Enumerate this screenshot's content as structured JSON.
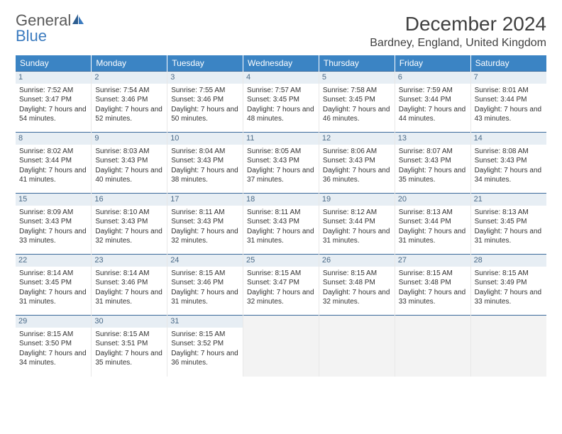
{
  "brand": {
    "word1": "General",
    "word2": "Blue"
  },
  "title": "December 2024",
  "location": "Bardney, England, United Kingdom",
  "colors": {
    "header_bg": "#3b84c4",
    "header_text": "#ffffff",
    "daynum_bg": "#e7eef4",
    "daynum_text": "#4a6a88",
    "row_border": "#3b6a9a",
    "empty_bg": "#f3f3f3",
    "logo_blue": "#3b7bbf",
    "logo_gray": "#5a5a5a"
  },
  "day_headers": [
    "Sunday",
    "Monday",
    "Tuesday",
    "Wednesday",
    "Thursday",
    "Friday",
    "Saturday"
  ],
  "weeks": [
    [
      {
        "n": "1",
        "sr": "Sunrise: 7:52 AM",
        "ss": "Sunset: 3:47 PM",
        "dl": "Daylight: 7 hours and 54 minutes."
      },
      {
        "n": "2",
        "sr": "Sunrise: 7:54 AM",
        "ss": "Sunset: 3:46 PM",
        "dl": "Daylight: 7 hours and 52 minutes."
      },
      {
        "n": "3",
        "sr": "Sunrise: 7:55 AM",
        "ss": "Sunset: 3:46 PM",
        "dl": "Daylight: 7 hours and 50 minutes."
      },
      {
        "n": "4",
        "sr": "Sunrise: 7:57 AM",
        "ss": "Sunset: 3:45 PM",
        "dl": "Daylight: 7 hours and 48 minutes."
      },
      {
        "n": "5",
        "sr": "Sunrise: 7:58 AM",
        "ss": "Sunset: 3:45 PM",
        "dl": "Daylight: 7 hours and 46 minutes."
      },
      {
        "n": "6",
        "sr": "Sunrise: 7:59 AM",
        "ss": "Sunset: 3:44 PM",
        "dl": "Daylight: 7 hours and 44 minutes."
      },
      {
        "n": "7",
        "sr": "Sunrise: 8:01 AM",
        "ss": "Sunset: 3:44 PM",
        "dl": "Daylight: 7 hours and 43 minutes."
      }
    ],
    [
      {
        "n": "8",
        "sr": "Sunrise: 8:02 AM",
        "ss": "Sunset: 3:44 PM",
        "dl": "Daylight: 7 hours and 41 minutes."
      },
      {
        "n": "9",
        "sr": "Sunrise: 8:03 AM",
        "ss": "Sunset: 3:43 PM",
        "dl": "Daylight: 7 hours and 40 minutes."
      },
      {
        "n": "10",
        "sr": "Sunrise: 8:04 AM",
        "ss": "Sunset: 3:43 PM",
        "dl": "Daylight: 7 hours and 38 minutes."
      },
      {
        "n": "11",
        "sr": "Sunrise: 8:05 AM",
        "ss": "Sunset: 3:43 PM",
        "dl": "Daylight: 7 hours and 37 minutes."
      },
      {
        "n": "12",
        "sr": "Sunrise: 8:06 AM",
        "ss": "Sunset: 3:43 PM",
        "dl": "Daylight: 7 hours and 36 minutes."
      },
      {
        "n": "13",
        "sr": "Sunrise: 8:07 AM",
        "ss": "Sunset: 3:43 PM",
        "dl": "Daylight: 7 hours and 35 minutes."
      },
      {
        "n": "14",
        "sr": "Sunrise: 8:08 AM",
        "ss": "Sunset: 3:43 PM",
        "dl": "Daylight: 7 hours and 34 minutes."
      }
    ],
    [
      {
        "n": "15",
        "sr": "Sunrise: 8:09 AM",
        "ss": "Sunset: 3:43 PM",
        "dl": "Daylight: 7 hours and 33 minutes."
      },
      {
        "n": "16",
        "sr": "Sunrise: 8:10 AM",
        "ss": "Sunset: 3:43 PM",
        "dl": "Daylight: 7 hours and 32 minutes."
      },
      {
        "n": "17",
        "sr": "Sunrise: 8:11 AM",
        "ss": "Sunset: 3:43 PM",
        "dl": "Daylight: 7 hours and 32 minutes."
      },
      {
        "n": "18",
        "sr": "Sunrise: 8:11 AM",
        "ss": "Sunset: 3:43 PM",
        "dl": "Daylight: 7 hours and 31 minutes."
      },
      {
        "n": "19",
        "sr": "Sunrise: 8:12 AM",
        "ss": "Sunset: 3:44 PM",
        "dl": "Daylight: 7 hours and 31 minutes."
      },
      {
        "n": "20",
        "sr": "Sunrise: 8:13 AM",
        "ss": "Sunset: 3:44 PM",
        "dl": "Daylight: 7 hours and 31 minutes."
      },
      {
        "n": "21",
        "sr": "Sunrise: 8:13 AM",
        "ss": "Sunset: 3:45 PM",
        "dl": "Daylight: 7 hours and 31 minutes."
      }
    ],
    [
      {
        "n": "22",
        "sr": "Sunrise: 8:14 AM",
        "ss": "Sunset: 3:45 PM",
        "dl": "Daylight: 7 hours and 31 minutes."
      },
      {
        "n": "23",
        "sr": "Sunrise: 8:14 AM",
        "ss": "Sunset: 3:46 PM",
        "dl": "Daylight: 7 hours and 31 minutes."
      },
      {
        "n": "24",
        "sr": "Sunrise: 8:15 AM",
        "ss": "Sunset: 3:46 PM",
        "dl": "Daylight: 7 hours and 31 minutes."
      },
      {
        "n": "25",
        "sr": "Sunrise: 8:15 AM",
        "ss": "Sunset: 3:47 PM",
        "dl": "Daylight: 7 hours and 32 minutes."
      },
      {
        "n": "26",
        "sr": "Sunrise: 8:15 AM",
        "ss": "Sunset: 3:48 PM",
        "dl": "Daylight: 7 hours and 32 minutes."
      },
      {
        "n": "27",
        "sr": "Sunrise: 8:15 AM",
        "ss": "Sunset: 3:48 PM",
        "dl": "Daylight: 7 hours and 33 minutes."
      },
      {
        "n": "28",
        "sr": "Sunrise: 8:15 AM",
        "ss": "Sunset: 3:49 PM",
        "dl": "Daylight: 7 hours and 33 minutes."
      }
    ],
    [
      {
        "n": "29",
        "sr": "Sunrise: 8:15 AM",
        "ss": "Sunset: 3:50 PM",
        "dl": "Daylight: 7 hours and 34 minutes."
      },
      {
        "n": "30",
        "sr": "Sunrise: 8:15 AM",
        "ss": "Sunset: 3:51 PM",
        "dl": "Daylight: 7 hours and 35 minutes."
      },
      {
        "n": "31",
        "sr": "Sunrise: 8:15 AM",
        "ss": "Sunset: 3:52 PM",
        "dl": "Daylight: 7 hours and 36 minutes."
      },
      {
        "empty": true
      },
      {
        "empty": true
      },
      {
        "empty": true
      },
      {
        "empty": true
      }
    ]
  ]
}
